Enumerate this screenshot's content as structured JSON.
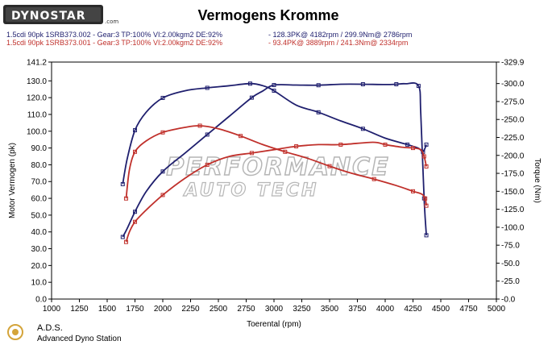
{
  "logo": {
    "text": "DYNOSTAR",
    "suffix": ".com"
  },
  "watermark": {
    "line1": "PERFORMANCE",
    "line2": "AUTO TECH"
  },
  "footer": {
    "brand": "A.D.S.",
    "subtitle": "Advanced Dyno Station"
  },
  "chart_data": {
    "type": "line",
    "title": "Vermogens Kromme",
    "xlabel": "Toerental (rpm)",
    "ylabel": "Motor Vermogen (pk)",
    "y2label": "Torque (Nm)",
    "xlim": [
      1000,
      5000
    ],
    "ylim": [
      0,
      141.2
    ],
    "y2lim": [
      0,
      329.9
    ],
    "x_ticks": [
      1000,
      1250,
      1500,
      1750,
      2000,
      2250,
      2500,
      2750,
      3000,
      3250,
      3500,
      3750,
      4000,
      4250,
      4500,
      4750,
      5000
    ],
    "x_tick_labels": [
      "1000",
      "1250",
      "1500",
      "1750",
      "2000",
      "2250",
      "2500",
      "2750",
      "3000",
      "3250",
      "3500",
      "3750",
      "4000",
      "4250",
      "4500",
      "4750",
      "5000"
    ],
    "y_ticks": [
      0,
      10,
      20,
      30,
      40,
      50,
      60,
      70,
      80,
      90,
      100,
      110,
      120,
      130,
      141.2
    ],
    "y_tick_labels": [
      "0.0",
      "10.0",
      "20.0",
      "30.0",
      "40.0",
      "50.0",
      "60.0",
      "70.0",
      "80.0",
      "90.0",
      "100.0",
      "110.0",
      "120.0",
      "130.0",
      "141.2"
    ],
    "y2_ticks": [
      0,
      25,
      50,
      75,
      100,
      125,
      150,
      175,
      200,
      225,
      250,
      275,
      300,
      329.9
    ],
    "y2_tick_labels": [
      "-0.0",
      "-25.0",
      "-50.0",
      "-75.0",
      "-100.0",
      "-125.0",
      "-150.0",
      "-175.0",
      "-200.0",
      "-225.0",
      "-250.0",
      "-275.0",
      "-300.0",
      "-329.9"
    ],
    "grid": false,
    "legend_position": "top-left",
    "runs": [
      {
        "label": "1.5cdi 90pk 1SRB373.002 - Gear:3 TP:100% VI:2.00kgm2 DE:92%",
        "summary": "- 128.3PK@ 4182rpm / 299.9Nm@ 2786rpm",
        "color": "#1f1f6e"
      },
      {
        "label": "1.5cdi 90pk 1SRB373.001 - Gear:3 TP:100% VI:2.00kgm2 DE:92%",
        "summary": "- 93.4PK@ 3889rpm / 241.3Nm@ 2334rpm",
        "color": "#c0302b"
      }
    ],
    "series": [
      {
        "run": 0,
        "axis": "left",
        "color": "#1f1f6e",
        "x": [
          1640,
          1680,
          1750,
          1850,
          2000,
          2200,
          2400,
          2600,
          2800,
          2900,
          3000,
          3200,
          3400,
          3600,
          3800,
          4000,
          4100,
          4182,
          4300,
          4320,
          4350,
          4370
        ],
        "y": [
          37,
          42,
          52,
          64,
          76,
          87,
          98,
          109,
          120,
          124,
          127.5,
          127.5,
          127.4,
          128,
          128,
          127.8,
          128,
          128.3,
          127,
          110,
          60,
          38
        ]
      },
      {
        "run": 0,
        "axis": "right",
        "color": "#1f1f6e",
        "x": [
          1640,
          1680,
          1750,
          1850,
          2000,
          2200,
          2400,
          2600,
          2786,
          2900,
          3000,
          3200,
          3400,
          3600,
          3800,
          4000,
          4200,
          4300,
          4340,
          4370
        ],
        "y": [
          160,
          195,
          235,
          260,
          280,
          290,
          294,
          297,
          299.9,
          297,
          290,
          270,
          260,
          248,
          237,
          224,
          215,
          210,
          205,
          215
        ]
      },
      {
        "run": 1,
        "axis": "left",
        "color": "#c0302b",
        "x": [
          1670,
          1700,
          1750,
          1850,
          2000,
          2200,
          2400,
          2600,
          2800,
          3000,
          3200,
          3400,
          3600,
          3889,
          4000,
          4150,
          4250,
          4320,
          4350,
          4370
        ],
        "y": [
          34,
          40,
          46,
          53,
          62,
          72,
          80,
          85,
          87,
          89,
          91,
          92,
          92,
          93.4,
          92,
          90.5,
          90,
          89,
          85,
          79
        ]
      },
      {
        "run": 1,
        "axis": "right",
        "color": "#c0302b",
        "x": [
          1670,
          1700,
          1750,
          1850,
          2000,
          2200,
          2334,
          2500,
          2700,
          2900,
          3100,
          3300,
          3500,
          3700,
          3900,
          4100,
          4250,
          4330,
          4360,
          4370
        ],
        "y": [
          140,
          180,
          205,
          220,
          232,
          239,
          241.3,
          237,
          227,
          215,
          205,
          196,
          185,
          175,
          167,
          158,
          150,
          146,
          140,
          130
        ]
      }
    ]
  }
}
